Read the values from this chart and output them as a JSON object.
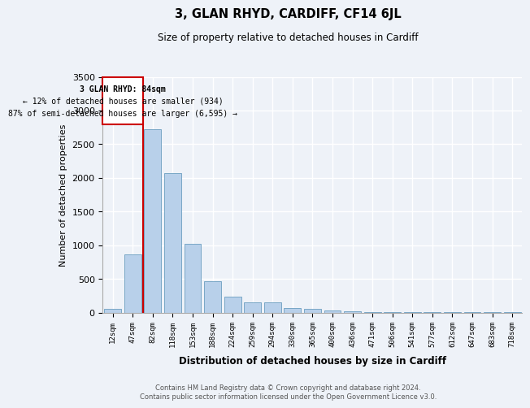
{
  "title": "3, GLAN RHYD, CARDIFF, CF14 6JL",
  "subtitle": "Size of property relative to detached houses in Cardiff",
  "xlabel": "Distribution of detached houses by size in Cardiff",
  "ylabel": "Number of detached properties",
  "categories": [
    "12sqm",
    "47sqm",
    "82sqm",
    "118sqm",
    "153sqm",
    "188sqm",
    "224sqm",
    "259sqm",
    "294sqm",
    "330sqm",
    "365sqm",
    "400sqm",
    "436sqm",
    "471sqm",
    "506sqm",
    "541sqm",
    "577sqm",
    "612sqm",
    "647sqm",
    "683sqm",
    "718sqm"
  ],
  "values": [
    50,
    860,
    2720,
    2070,
    1020,
    460,
    240,
    150,
    145,
    65,
    50,
    30,
    20,
    10,
    8,
    5,
    3,
    2,
    2,
    1,
    1
  ],
  "bar_color": "#b8d0ea",
  "bar_edge_color": "#6a9ec0",
  "marker_label": "3 GLAN RHYD: 84sqm",
  "annotation_line1": "← 12% of detached houses are smaller (934)",
  "annotation_line2": "87% of semi-detached houses are larger (6,595) →",
  "marker_color": "#cc0000",
  "box_color": "#cc0000",
  "ylim": [
    0,
    3500
  ],
  "yticks": [
    0,
    500,
    1000,
    1500,
    2000,
    2500,
    3000,
    3500
  ],
  "background_color": "#eef2f8",
  "grid_color": "#ffffff",
  "footer_line1": "Contains HM Land Registry data © Crown copyright and database right 2024.",
  "footer_line2": "Contains public sector information licensed under the Open Government Licence v3.0."
}
